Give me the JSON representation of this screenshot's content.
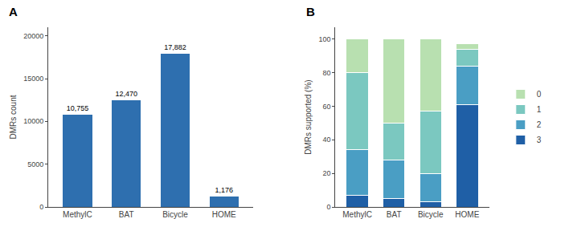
{
  "chart_data": [
    {
      "type": "bar",
      "title": "A",
      "categories": [
        "MethylC",
        "BAT",
        "Bicycle",
        "HOME"
      ],
      "values": [
        10755,
        12470,
        17882,
        1176
      ],
      "value_labels": [
        "10,755",
        "12,470",
        "17,882",
        "1,176"
      ],
      "data_labels": true,
      "color": "#2E6FAF",
      "ylabel": "DMRs count",
      "ylim": [
        0,
        21000
      ],
      "yticks": [
        0,
        5000,
        10000,
        15000,
        20000
      ],
      "grid": false
    },
    {
      "type": "bar",
      "title": "B",
      "categories": [
        "MethylC",
        "BAT",
        "Bicycle",
        "HOME"
      ],
      "stacked": true,
      "series": [
        {
          "name": "3",
          "color": "#1F5FA6",
          "values": [
            7,
            5,
            3,
            61
          ]
        },
        {
          "name": "2",
          "color": "#4A9EC4",
          "values": [
            27,
            23,
            17,
            23
          ]
        },
        {
          "name": "1",
          "color": "#7BC8C0",
          "values": [
            46,
            22,
            37,
            10
          ]
        },
        {
          "name": "0",
          "color": "#B8E0B0",
          "values": [
            20,
            50,
            43,
            3
          ]
        }
      ],
      "ylabel": "DMRs supported (%)",
      "ylim": [
        0,
        107
      ],
      "yticks": [
        0,
        20,
        40,
        60,
        80,
        100
      ],
      "legend": "right",
      "grid": false
    }
  ]
}
